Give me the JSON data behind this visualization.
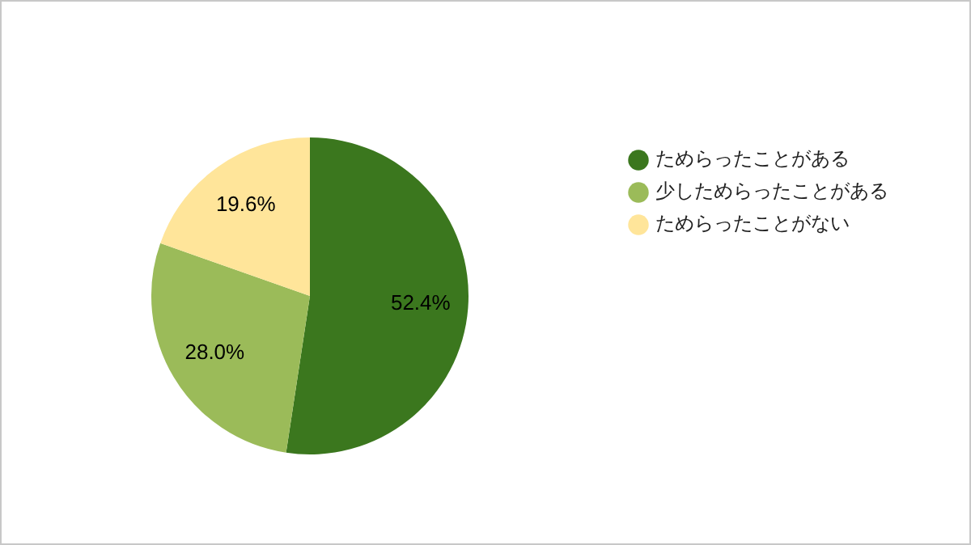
{
  "chart_data": {
    "type": "pie",
    "categories": [
      "ためらったことがある",
      "少しためらったことがある",
      "ためらったことがない"
    ],
    "values": [
      52.4,
      28.0,
      19.6
    ],
    "colors": [
      "#3b771e",
      "#9bbb59",
      "#ffe59a"
    ],
    "value_labels": [
      "52.4%",
      "28.0%",
      "19.6%"
    ],
    "legend": "right"
  }
}
